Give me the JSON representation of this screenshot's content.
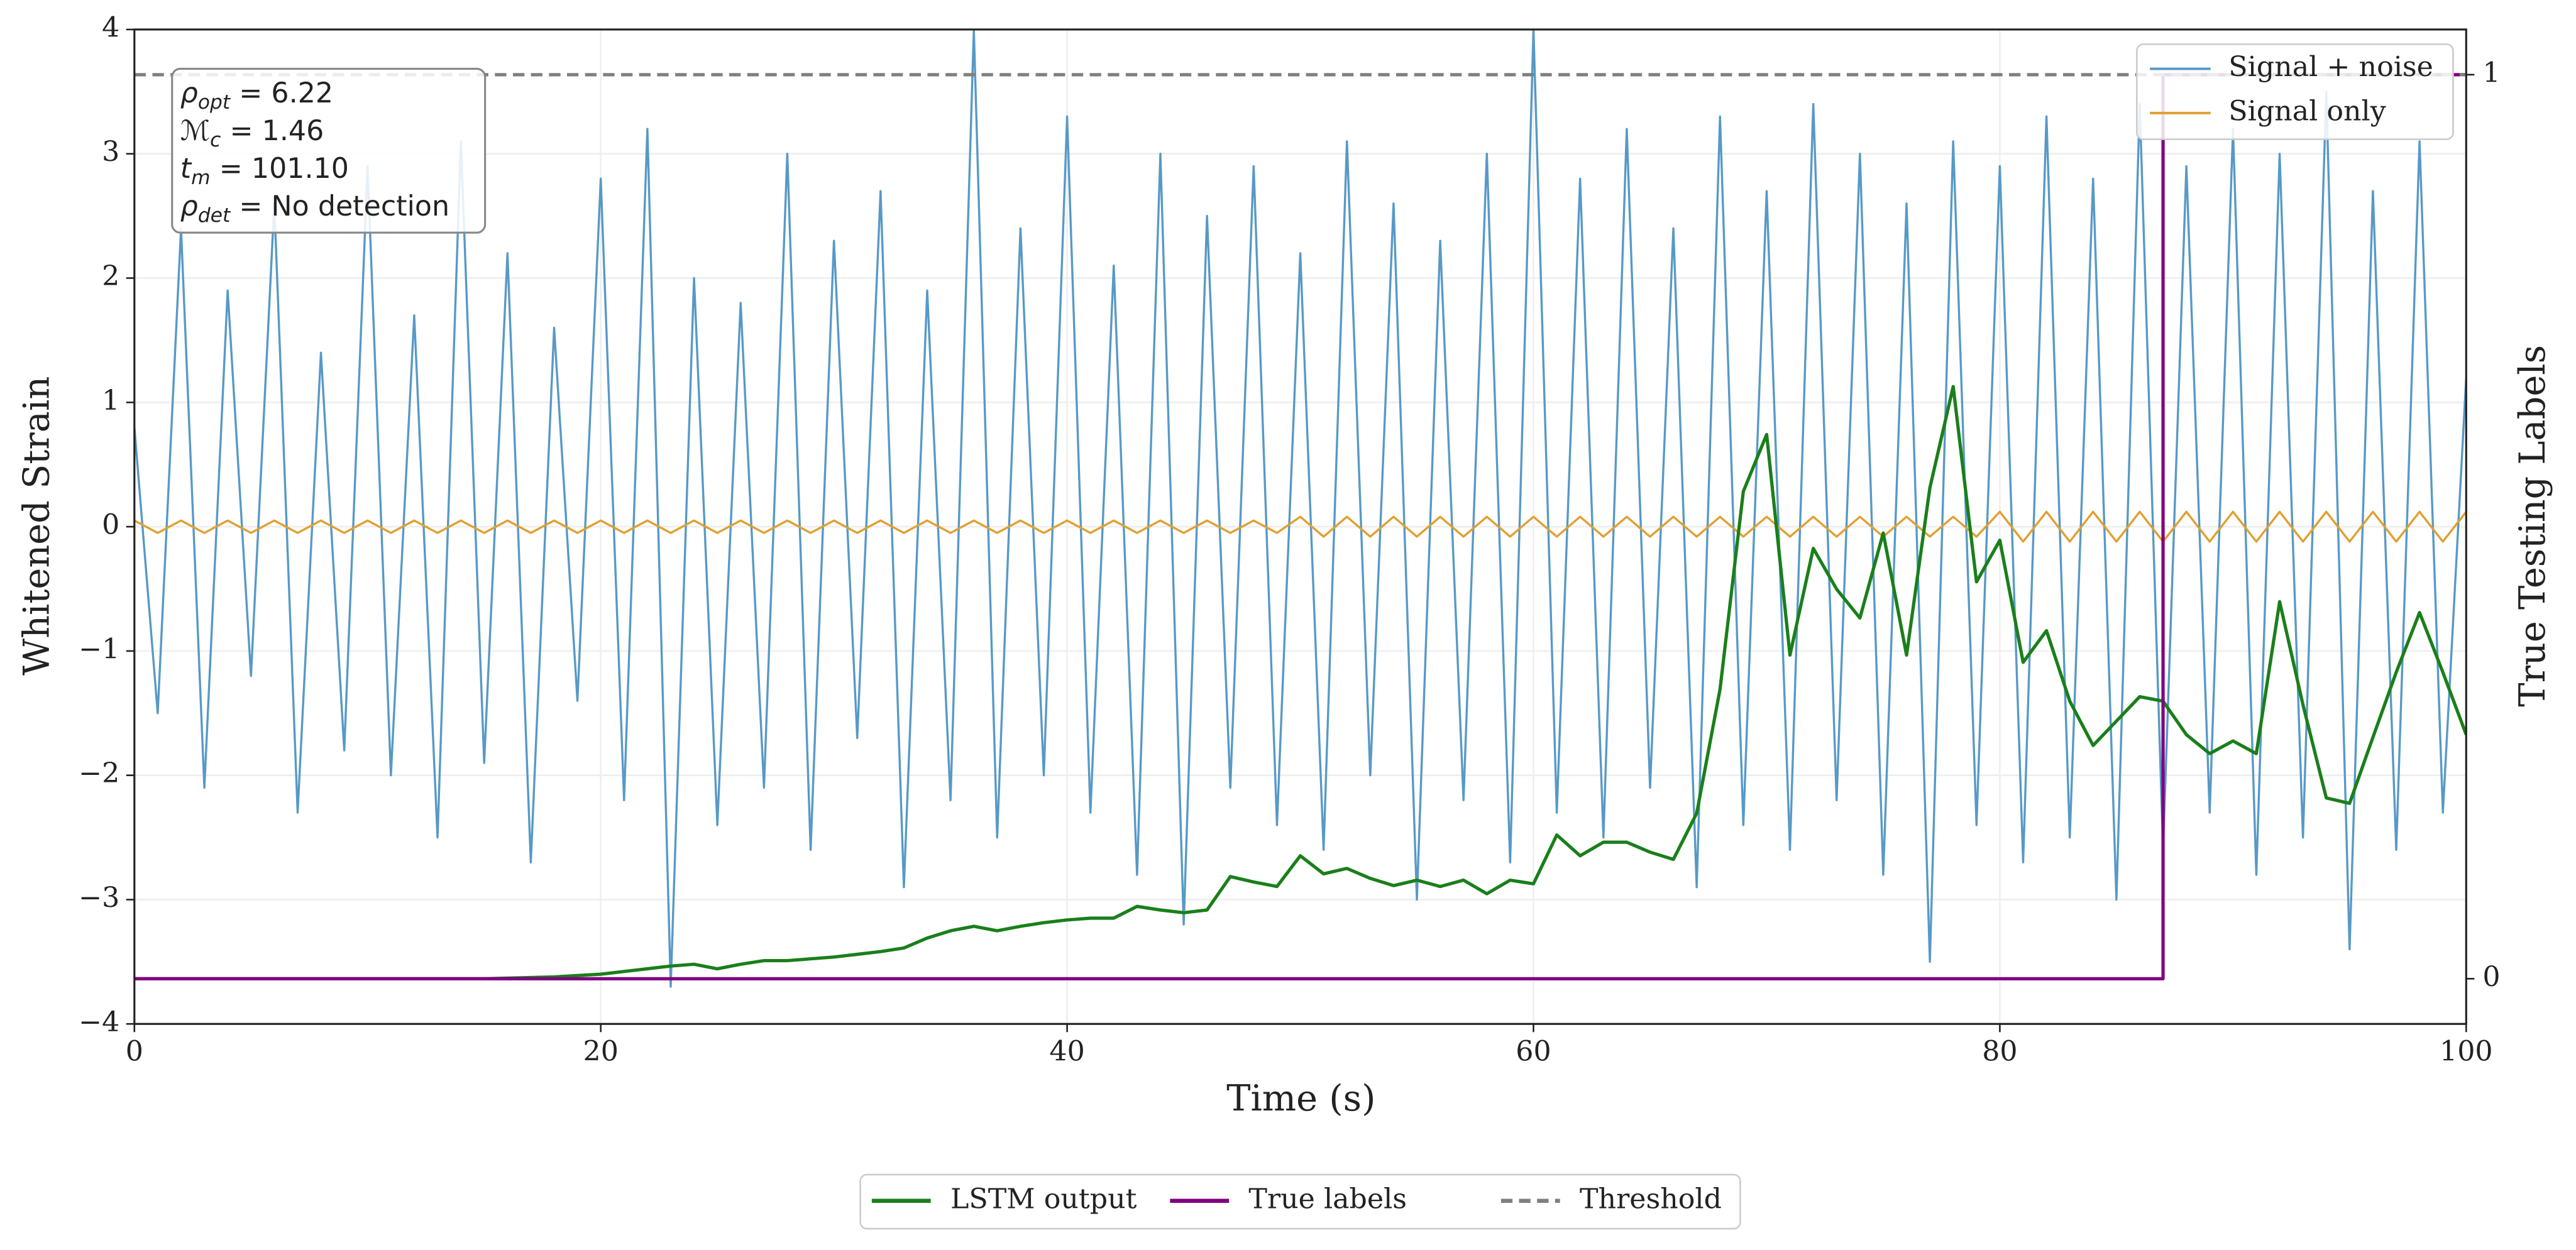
{
  "chart_data": {
    "type": "line",
    "xlabel": "Time (s)",
    "ylabel": "Whitened Strain",
    "y2label": "True Testing Labels",
    "xlim": [
      0,
      100
    ],
    "xticks": [
      0,
      20,
      40,
      60,
      80,
      100
    ],
    "ylim": [
      -4,
      4
    ],
    "yticks": [
      {
        "value": -4,
        "label": "−4"
      },
      {
        "value": -3,
        "label": "−3"
      },
      {
        "value": -2,
        "label": "−2"
      },
      {
        "value": -1,
        "label": "−1"
      },
      0,
      1,
      2,
      3,
      4
    ],
    "y2lim": [
      -0.05,
      1.05
    ],
    "y2ticks": [
      0,
      1
    ],
    "grid": true,
    "annotation": [
      {
        "base": "ρ",
        "sub": "opt",
        "rest": " = 6.22"
      },
      {
        "base": "ℳ",
        "sub": "c",
        "rest": " = 1.46"
      },
      {
        "base": "t",
        "sub": "m",
        "rest": " = 101.10"
      },
      {
        "base": "ρ",
        "sub": "det",
        "rest": " = No detection"
      }
    ],
    "x": [
      0,
      1,
      2,
      3,
      4,
      5,
      6,
      7,
      8,
      9,
      10,
      11,
      12,
      13,
      14,
      15,
      16,
      17,
      18,
      19,
      20,
      21,
      22,
      23,
      24,
      25,
      26,
      27,
      28,
      29,
      30,
      31,
      32,
      33,
      34,
      35,
      36,
      37,
      38,
      39,
      40,
      41,
      42,
      43,
      44,
      45,
      46,
      47,
      48,
      49,
      50,
      51,
      52,
      53,
      54,
      55,
      56,
      57,
      58,
      59,
      60,
      61,
      62,
      63,
      64,
      65,
      66,
      67,
      68,
      69,
      70,
      71,
      72,
      73,
      74,
      75,
      76,
      77,
      78,
      79,
      80,
      81,
      82,
      83,
      84,
      85,
      86,
      87,
      88,
      89,
      90,
      91,
      92,
      93,
      94,
      95,
      96,
      97,
      98,
      99,
      100
    ],
    "series": [
      {
        "name": "Signal + noise",
        "color": "#5799c7",
        "axis": "y",
        "values": [
          0.8,
          -1.5,
          2.4,
          -2.1,
          1.9,
          -1.2,
          2.6,
          -2.3,
          1.4,
          -1.8,
          2.9,
          -2.0,
          1.7,
          -2.5,
          3.1,
          -1.9,
          2.2,
          -2.7,
          1.6,
          -1.4,
          2.8,
          -2.2,
          3.2,
          -3.7,
          2.0,
          -2.4,
          1.8,
          -2.1,
          3.0,
          -2.6,
          2.3,
          -1.7,
          2.7,
          -2.9,
          1.9,
          -2.2,
          4.0,
          -2.5,
          2.4,
          -2.0,
          3.3,
          -2.3,
          2.1,
          -2.8,
          3.0,
          -3.2,
          2.5,
          -2.1,
          2.9,
          -2.4,
          2.2,
          -2.6,
          3.1,
          -2.0,
          2.6,
          -3.0,
          2.3,
          -2.2,
          3.0,
          -2.7,
          4.0,
          -2.3,
          2.8,
          -2.5,
          3.2,
          -2.1,
          2.4,
          -2.9,
          3.3,
          -2.4,
          2.7,
          -2.6,
          3.4,
          -2.2,
          3.0,
          -2.8,
          2.6,
          -3.5,
          3.1,
          -2.4,
          2.9,
          -2.7,
          3.3,
          -2.5,
          2.8,
          -3.0,
          3.4,
          -2.6,
          2.9,
          -2.3,
          3.2,
          -2.8,
          3.0,
          -2.5,
          3.5,
          -3.4,
          2.7,
          -2.6,
          3.1,
          -2.3,
          1.2
        ]
      },
      {
        "name": "Signal only",
        "color": "#e0a030",
        "axis": "y",
        "values": [
          0.05,
          -0.05,
          0.05,
          -0.05,
          0.05,
          -0.05,
          0.05,
          -0.05,
          0.05,
          -0.05,
          0.05,
          -0.05,
          0.05,
          -0.05,
          0.05,
          -0.05,
          0.05,
          -0.05,
          0.05,
          -0.05,
          0.05,
          -0.05,
          0.05,
          -0.05,
          0.05,
          -0.05,
          0.05,
          -0.05,
          0.05,
          -0.05,
          0.05,
          -0.05,
          0.05,
          -0.05,
          0.05,
          -0.05,
          0.05,
          -0.05,
          0.05,
          -0.05,
          0.05,
          -0.05,
          0.05,
          -0.05,
          0.05,
          -0.05,
          0.05,
          -0.05,
          0.05,
          -0.05,
          0.08,
          -0.08,
          0.08,
          -0.08,
          0.08,
          -0.08,
          0.08,
          -0.08,
          0.08,
          -0.08,
          0.08,
          -0.08,
          0.08,
          -0.08,
          0.08,
          -0.08,
          0.08,
          -0.08,
          0.08,
          -0.08,
          0.08,
          -0.08,
          0.08,
          -0.08,
          0.08,
          -0.08,
          0.08,
          -0.08,
          0.08,
          -0.08,
          0.12,
          -0.12,
          0.12,
          -0.12,
          0.12,
          -0.12,
          0.12,
          -0.12,
          0.12,
          -0.12,
          0.12,
          -0.12,
          0.12,
          -0.12,
          0.12,
          -0.12,
          0.12,
          -0.12,
          0.12,
          -0.12,
          0.12
        ]
      },
      {
        "name": "LSTM output",
        "color": "#1a7f1a",
        "axis": "y2",
        "x": [
          0,
          5,
          10,
          15,
          18,
          20,
          21,
          22,
          23,
          24,
          25,
          26,
          27,
          28,
          29,
          30,
          31,
          32,
          33,
          34,
          35,
          36,
          37,
          38,
          39,
          40,
          41,
          42,
          43,
          44,
          45,
          46,
          47,
          48,
          49,
          50,
          51,
          52,
          53,
          54,
          55,
          56,
          57,
          58,
          59,
          60,
          61,
          62,
          63,
          64,
          65,
          66,
          67,
          68,
          69,
          70,
          71,
          72,
          73,
          74,
          75,
          76,
          77,
          78,
          79,
          80,
          81,
          82,
          83,
          84,
          85,
          86,
          87,
          88,
          89,
          90,
          91,
          92,
          93,
          94,
          95,
          96,
          97,
          98,
          99,
          100
        ],
        "values": [
          0,
          0,
          0,
          0,
          0.002,
          0.005,
          0.008,
          0.011,
          0.014,
          0.016,
          0.011,
          0.016,
          0.02,
          0.02,
          0.022,
          0.024,
          0.027,
          0.03,
          0.034,
          0.045,
          0.053,
          0.058,
          0.053,
          0.058,
          0.062,
          0.065,
          0.067,
          0.067,
          0.08,
          0.076,
          0.073,
          0.076,
          0.113,
          0.107,
          0.102,
          0.136,
          0.116,
          0.122,
          0.111,
          0.103,
          0.109,
          0.102,
          0.109,
          0.094,
          0.109,
          0.105,
          0.159,
          0.136,
          0.151,
          0.151,
          0.14,
          0.132,
          0.183,
          0.32,
          0.539,
          0.602,
          0.358,
          0.476,
          0.431,
          0.399,
          0.493,
          0.358,
          0.543,
          0.655,
          0.439,
          0.485,
          0.35,
          0.385,
          0.307,
          0.258,
          0.285,
          0.312,
          0.307,
          0.27,
          0.249,
          0.263,
          0.249,
          0.417,
          0.303,
          0.2,
          0.194,
          0.267,
          0.339,
          0.405,
          0.339,
          0.27
        ]
      },
      {
        "name": "True labels",
        "color": "#800080",
        "axis": "y2",
        "x": [
          0,
          87,
          87,
          100
        ],
        "values": [
          0,
          0,
          1,
          1
        ]
      },
      {
        "name": "Threshold",
        "color": "#7f7f7f",
        "axis": "y2",
        "dashed": true,
        "x": [
          0,
          100
        ],
        "values": [
          1,
          1
        ]
      }
    ]
  }
}
